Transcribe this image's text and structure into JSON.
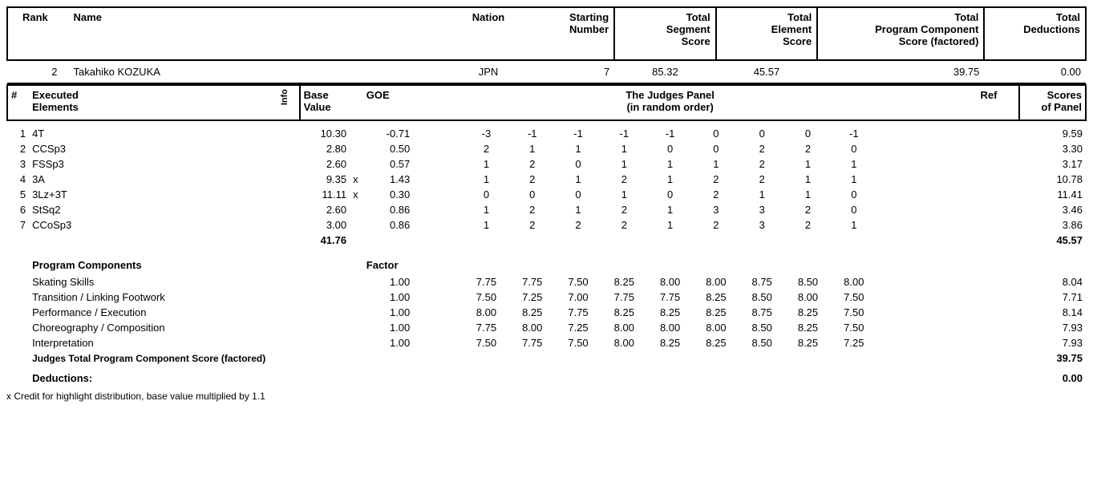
{
  "header": {
    "labels": {
      "rank": "Rank",
      "name": "Name",
      "nation": "Nation",
      "starting_number": "Starting\nNumber",
      "total_segment": "Total\nSegment\nScore",
      "total_element": "Total\nElement\nScore",
      "total_pcs": "Total\nProgram Component\nScore (factored)",
      "total_deductions": "Total\nDeductions"
    },
    "skater": {
      "rank": "2",
      "name": "Takahiko KOZUKA",
      "nation": "JPN",
      "start_no": "7",
      "segment_score": "85.32",
      "element_score": "45.57",
      "pcs_score": "39.75",
      "deductions": "0.00"
    }
  },
  "elements_header": {
    "num": "#",
    "executed": "Executed\nElements",
    "info": "Info",
    "base": "Base\nValue",
    "goe": "GOE",
    "panel": "The Judges Panel\n(in random order)",
    "ref": "Ref",
    "scores": "Scores\nof Panel"
  },
  "elements": [
    {
      "n": "1",
      "code": "4T",
      "base": "10.30",
      "x": "",
      "goe": "-0.71",
      "j": [
        "-3",
        "-1",
        "-1",
        "-1",
        "-1",
        "0",
        "0",
        "0",
        "-1"
      ],
      "score": "9.59"
    },
    {
      "n": "2",
      "code": "CCSp3",
      "base": "2.80",
      "x": "",
      "goe": "0.50",
      "j": [
        "2",
        "1",
        "1",
        "1",
        "0",
        "0",
        "2",
        "2",
        "0"
      ],
      "score": "3.30"
    },
    {
      "n": "3",
      "code": "FSSp3",
      "base": "2.60",
      "x": "",
      "goe": "0.57",
      "j": [
        "1",
        "2",
        "0",
        "1",
        "1",
        "1",
        "2",
        "1",
        "1"
      ],
      "score": "3.17"
    },
    {
      "n": "4",
      "code": "3A",
      "base": "9.35",
      "x": "x",
      "goe": "1.43",
      "j": [
        "1",
        "2",
        "1",
        "2",
        "1",
        "2",
        "2",
        "1",
        "1"
      ],
      "score": "10.78"
    },
    {
      "n": "5",
      "code": "3Lz+3T",
      "base": "11.11",
      "x": "x",
      "goe": "0.30",
      "j": [
        "0",
        "0",
        "0",
        "1",
        "0",
        "2",
        "1",
        "1",
        "0"
      ],
      "score": "11.41"
    },
    {
      "n": "6",
      "code": "StSq2",
      "base": "2.60",
      "x": "",
      "goe": "0.86",
      "j": [
        "1",
        "2",
        "1",
        "2",
        "1",
        "3",
        "3",
        "2",
        "0"
      ],
      "score": "3.46"
    },
    {
      "n": "7",
      "code": "CCoSp3",
      "base": "3.00",
      "x": "",
      "goe": "0.86",
      "j": [
        "1",
        "2",
        "2",
        "2",
        "1",
        "2",
        "3",
        "2",
        "1"
      ],
      "score": "3.86"
    }
  ],
  "elements_total": {
    "base": "41.76",
    "score": "45.57"
  },
  "components": {
    "title": "Program Components",
    "factor_label": "Factor",
    "rows": [
      {
        "name": "Skating Skills",
        "factor": "1.00",
        "j": [
          "7.75",
          "7.75",
          "7.50",
          "8.25",
          "8.00",
          "8.00",
          "8.75",
          "8.50",
          "8.00"
        ],
        "score": "8.04"
      },
      {
        "name": "Transition / Linking Footwork",
        "factor": "1.00",
        "j": [
          "7.50",
          "7.25",
          "7.00",
          "7.75",
          "7.75",
          "8.25",
          "8.50",
          "8.00",
          "7.50"
        ],
        "score": "7.71"
      },
      {
        "name": "Performance / Execution",
        "factor": "1.00",
        "j": [
          "8.00",
          "8.25",
          "7.75",
          "8.25",
          "8.25",
          "8.25",
          "8.75",
          "8.25",
          "7.50"
        ],
        "score": "8.14"
      },
      {
        "name": "Choreography / Composition",
        "factor": "1.00",
        "j": [
          "7.75",
          "8.00",
          "7.25",
          "8.00",
          "8.00",
          "8.00",
          "8.50",
          "8.25",
          "7.50"
        ],
        "score": "7.93"
      },
      {
        "name": "Interpretation",
        "factor": "1.00",
        "j": [
          "7.50",
          "7.75",
          "7.50",
          "8.00",
          "8.25",
          "8.25",
          "8.50",
          "8.25",
          "7.25"
        ],
        "score": "7.93"
      }
    ],
    "total_label": "Judges Total Program Component Score (factored)",
    "total": "39.75"
  },
  "deductions": {
    "label": "Deductions:",
    "value": "0.00"
  },
  "footnote": "x  Credit for highlight distribution, base value multiplied by 1.1"
}
